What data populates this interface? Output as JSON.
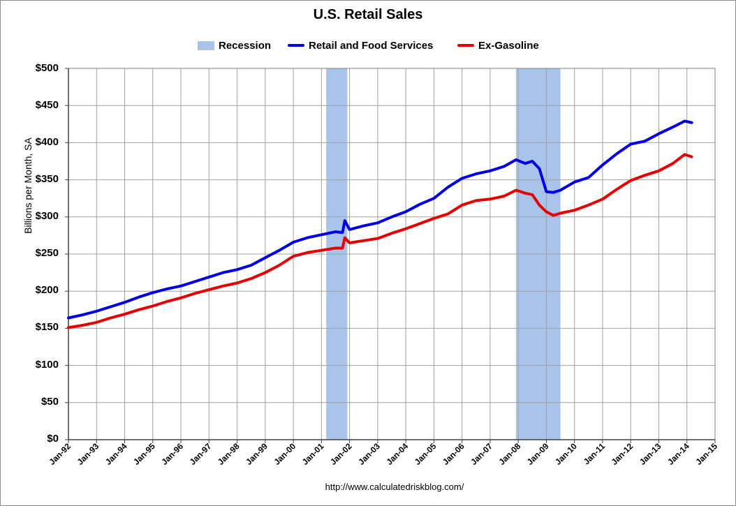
{
  "chart_data": {
    "type": "line",
    "title": "U.S. Retail Sales",
    "ylabel": "Billions per Month, SA",
    "ylim": [
      0,
      500
    ],
    "yticks": [
      "$0",
      "$50",
      "$100",
      "$150",
      "$200",
      "$250",
      "$300",
      "$350",
      "$400",
      "$450",
      "$500"
    ],
    "ytick_values": [
      0,
      50,
      100,
      150,
      200,
      250,
      300,
      350,
      400,
      450,
      500
    ],
    "xticks": [
      "Jan-92",
      "Jan-93",
      "Jan-94",
      "Jan-95",
      "Jan-96",
      "Jan-97",
      "Jan-98",
      "Jan-99",
      "Jan-00",
      "Jan-01",
      "Jan-02",
      "Jan-03",
      "Jan-04",
      "Jan-05",
      "Jan-06",
      "Jan-07",
      "Jan-08",
      "Jan-09",
      "Jan-10",
      "Jan-11",
      "Jan-12",
      "Jan-13",
      "Jan-14",
      "Jan-15"
    ],
    "xlim": [
      1992.0,
      2015.0
    ],
    "grid": true,
    "legend": {
      "placement": "top",
      "entries": [
        {
          "label": "Recession",
          "kind": "box",
          "color": "#a9c4eb"
        },
        {
          "label": "Retail and Food Services",
          "kind": "line",
          "color": "#0000e6"
        },
        {
          "label": "Ex-Gasoline",
          "kind": "line",
          "color": "#e60000"
        }
      ]
    },
    "recessions": [
      {
        "start": 2001.17,
        "end": 2001.92
      },
      {
        "start": 2007.92,
        "end": 2009.5
      }
    ],
    "series": [
      {
        "name": "Retail and Food Services",
        "color": "#0000e6",
        "x": [
          1992.0,
          1992.5,
          1993.0,
          1993.5,
          1994.0,
          1994.5,
          1995.0,
          1995.5,
          1996.0,
          1996.5,
          1997.0,
          1997.5,
          1998.0,
          1998.5,
          1999.0,
          1999.5,
          2000.0,
          2000.5,
          2001.0,
          2001.5,
          2001.75,
          2001.83,
          2002.0,
          2002.5,
          2003.0,
          2003.5,
          2004.0,
          2004.5,
          2005.0,
          2005.5,
          2006.0,
          2006.5,
          2007.0,
          2007.5,
          2007.92,
          2008.25,
          2008.5,
          2008.75,
          2009.0,
          2009.25,
          2009.5,
          2010.0,
          2010.5,
          2011.0,
          2011.5,
          2012.0,
          2012.5,
          2013.0,
          2013.5,
          2013.92,
          2014.17
        ],
        "y": [
          164,
          168,
          173,
          179,
          185,
          192,
          198,
          203,
          207,
          213,
          219,
          225,
          229,
          235,
          245,
          255,
          266,
          272,
          276,
          280,
          279,
          295,
          283,
          288,
          292,
          300,
          307,
          317,
          325,
          340,
          352,
          358,
          362,
          368,
          377,
          372,
          375,
          365,
          334,
          333,
          336,
          347,
          353,
          370,
          385,
          398,
          402,
          412,
          421,
          429,
          427
        ]
      },
      {
        "name": "Ex-Gasoline",
        "color": "#e60000",
        "x": [
          1992.0,
          1992.5,
          1993.0,
          1993.5,
          1994.0,
          1994.5,
          1995.0,
          1995.5,
          1996.0,
          1996.5,
          1997.0,
          1997.5,
          1998.0,
          1998.5,
          1999.0,
          1999.5,
          2000.0,
          2000.5,
          2001.0,
          2001.5,
          2001.75,
          2001.83,
          2002.0,
          2002.5,
          2003.0,
          2003.5,
          2004.0,
          2004.5,
          2005.0,
          2005.5,
          2006.0,
          2006.5,
          2007.0,
          2007.5,
          2007.92,
          2008.25,
          2008.5,
          2008.75,
          2009.0,
          2009.25,
          2009.5,
          2010.0,
          2010.5,
          2011.0,
          2011.5,
          2012.0,
          2012.5,
          2013.0,
          2013.5,
          2013.92,
          2014.17
        ],
        "y": [
          151,
          154,
          158,
          164,
          169,
          175,
          180,
          186,
          191,
          197,
          202,
          207,
          211,
          217,
          225,
          235,
          247,
          252,
          255,
          258,
          258,
          272,
          265,
          268,
          271,
          278,
          284,
          291,
          298,
          304,
          316,
          322,
          324,
          328,
          336,
          332,
          330,
          316,
          307,
          302,
          305,
          309,
          316,
          324,
          337,
          349,
          356,
          362,
          372,
          384,
          381
        ]
      }
    ]
  },
  "source": "http://www.calculatedriskblog.com/"
}
